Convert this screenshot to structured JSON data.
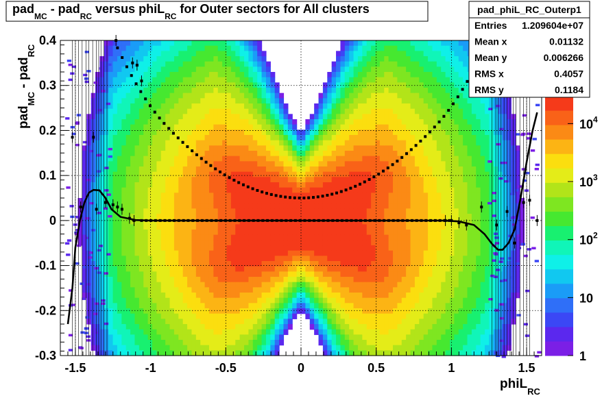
{
  "chart_data": {
    "type": "heatmap",
    "title": {
      "p1": "pad",
      "s1": "MC",
      "p2": " - pad",
      "s2": "RC",
      "p3": " versus phiL",
      "s3": "RC",
      "p4": " for Outer sectors for All clusters"
    },
    "xlabel": {
      "main": "phiL",
      "sub": "RC"
    },
    "ylabel": {
      "p1": "pad",
      "s1": "MC",
      "p2": " - pad",
      "s2": "RC"
    },
    "xlim": [
      -1.6,
      1.6
    ],
    "ylim": [
      -0.3,
      0.4
    ],
    "xticks": [
      {
        "v": -1.5,
        "label": "-1.5"
      },
      {
        "v": -1,
        "label": "-1"
      },
      {
        "v": -0.5,
        "label": "-0.5"
      },
      {
        "v": 0,
        "label": "0"
      },
      {
        "v": 0.5,
        "label": "0.5"
      },
      {
        "v": 1,
        "label": "1"
      },
      {
        "v": 1.5,
        "label": "1.5"
      }
    ],
    "yticks": [
      {
        "v": -0.3,
        "label": "-0.3"
      },
      {
        "v": -0.2,
        "label": "-0.2"
      },
      {
        "v": -0.1,
        "label": "-0.1"
      },
      {
        "v": 0,
        "label": "0"
      },
      {
        "v": 0.1,
        "label": "0.1"
      },
      {
        "v": 0.2,
        "label": "0.2"
      },
      {
        "v": 0.3,
        "label": "0.3"
      },
      {
        "v": 0.4,
        "label": "0.4"
      }
    ],
    "grid": true,
    "color_scale": {
      "type": "log",
      "range": [
        1,
        30000
      ],
      "ticks": [
        {
          "v": 1,
          "base": "1",
          "exp": ""
        },
        {
          "v": 10,
          "base": "10",
          "exp": ""
        },
        {
          "v": 100,
          "base": "10",
          "exp": "2"
        },
        {
          "v": 1000,
          "base": "10",
          "exp": "3"
        },
        {
          "v": 10000,
          "base": "10",
          "exp": "4"
        }
      ],
      "colors": [
        "#7b1fe6",
        "#5b28ee",
        "#3b47f5",
        "#2f6ff8",
        "#1a9cf7",
        "#11c8f0",
        "#0ff0e8",
        "#10f5b8",
        "#18f070",
        "#46e830",
        "#7ee621",
        "#b2e419",
        "#e4ec18",
        "#fbde0f",
        "#fcb414",
        "#fb8a15",
        "#f96218",
        "#f53a1a"
      ]
    },
    "profile_points": [
      [
        -1.52,
        0.185
      ],
      [
        -1.465,
        0.03
      ],
      [
        -1.38,
        0.185
      ],
      [
        -1.36,
        0.025
      ],
      [
        -1.3,
        0.04
      ],
      [
        -1.25,
        0.035
      ],
      [
        -1.22,
        0.03
      ],
      [
        -1.19,
        0.025
      ],
      [
        -1.14,
        0.005
      ],
      [
        -1.11,
        0.0
      ],
      [
        -1.23,
        0.4
      ],
      [
        -1.12,
        0.35
      ],
      [
        -1.09,
        0.345
      ],
      [
        -1.06,
        0.31
      ],
      [
        0.96,
        0.0
      ],
      [
        1.0,
        0.0
      ],
      [
        1.05,
        -0.005
      ],
      [
        1.1,
        -0.01
      ],
      [
        1.2,
        0.03
      ],
      [
        1.3,
        -0.01
      ],
      [
        1.37,
        0.02
      ],
      [
        1.42,
        -0.05
      ],
      [
        1.48,
        0.04
      ],
      [
        1.52,
        0.045
      ],
      [
        1.57,
        0.0
      ]
    ],
    "upper_band": {
      "a": 0.05,
      "b": 0.2,
      "c": 0.35,
      "x_range": [
        -1.22,
        1.18
      ]
    },
    "fit_curve": [
      [
        -1.55,
        -0.23
      ],
      [
        -1.52,
        -0.15
      ],
      [
        -1.5,
        -0.06
      ],
      [
        -1.47,
        0.0
      ],
      [
        -1.44,
        0.04
      ],
      [
        -1.41,
        0.062
      ],
      [
        -1.38,
        0.068
      ],
      [
        -1.34,
        0.067
      ],
      [
        -1.3,
        0.05
      ],
      [
        -1.26,
        0.025
      ],
      [
        -1.2,
        0.008
      ],
      [
        -1.1,
        0.001
      ],
      [
        -1.0,
        0.0
      ],
      [
        0.95,
        0.0
      ],
      [
        1.05,
        -0.002
      ],
      [
        1.15,
        -0.01
      ],
      [
        1.22,
        -0.03
      ],
      [
        1.27,
        -0.052
      ],
      [
        1.31,
        -0.065
      ],
      [
        1.34,
        -0.065
      ],
      [
        1.38,
        -0.05
      ],
      [
        1.42,
        -0.02
      ],
      [
        1.46,
        0.05
      ],
      [
        1.5,
        0.13
      ],
      [
        1.54,
        0.2
      ],
      [
        1.57,
        0.24
      ]
    ],
    "stats": {
      "name": "pad_phiL_RC_Outerp1",
      "rows": [
        {
          "label": "Entries",
          "value": "1.209604e+07"
        },
        {
          "label": "Mean x",
          "value": "0.01132"
        },
        {
          "label": "Mean y",
          "value": "0.006266"
        },
        {
          "label": "RMS x",
          "value": "0.4057"
        },
        {
          "label": "RMS y",
          "value": "0.1184"
        }
      ]
    }
  }
}
